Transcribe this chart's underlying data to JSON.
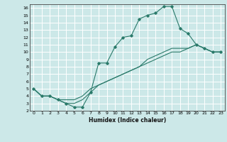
{
  "xlabel": "Humidex (Indice chaleur)",
  "bg_color": "#cce8e8",
  "grid_color": "#ffffff",
  "line_color": "#2a7a6a",
  "xlim": [
    -0.5,
    23.5
  ],
  "ylim": [
    2,
    16.5
  ],
  "xticks": [
    0,
    1,
    2,
    3,
    4,
    5,
    6,
    7,
    8,
    9,
    10,
    11,
    12,
    13,
    14,
    15,
    16,
    17,
    18,
    19,
    20,
    21,
    22,
    23
  ],
  "yticks": [
    2,
    3,
    4,
    5,
    6,
    7,
    8,
    9,
    10,
    11,
    12,
    13,
    14,
    15,
    16
  ],
  "line1_x": [
    0,
    1,
    2,
    3,
    4,
    5,
    6,
    7,
    8,
    9,
    10,
    11,
    12,
    13,
    14,
    15,
    16,
    17,
    18,
    19,
    20,
    21,
    22,
    23
  ],
  "line1_y": [
    5,
    4,
    4,
    3.5,
    3,
    2.5,
    2.5,
    4.5,
    8.5,
    8.5,
    10.7,
    12,
    12.2,
    14.5,
    15,
    15.3,
    16.2,
    16.2,
    13.2,
    12.5,
    11,
    10.5,
    10,
    10
  ],
  "line2_x": [
    0,
    1,
    2,
    3,
    4,
    5,
    6,
    7,
    8,
    9,
    10,
    11,
    12,
    13,
    14,
    15,
    16,
    17,
    18,
    19,
    20,
    21,
    22,
    23
  ],
  "line2_y": [
    5,
    4,
    4,
    3.5,
    3,
    3,
    3.5,
    4.5,
    5.5,
    6,
    6.5,
    7,
    7.5,
    8,
    8.5,
    9,
    9.5,
    10,
    10,
    10.5,
    11,
    10.5,
    10,
    10
  ],
  "line3_x": [
    0,
    1,
    2,
    3,
    4,
    5,
    6,
    7,
    8,
    9,
    10,
    11,
    12,
    13,
    14,
    15,
    16,
    17,
    18,
    19,
    20,
    21,
    22,
    23
  ],
  "line3_y": [
    5,
    4,
    4,
    3.5,
    3.5,
    3.5,
    4,
    5,
    5.5,
    6,
    6.5,
    7,
    7.5,
    8,
    9,
    9.5,
    10,
    10.5,
    10.5,
    10.5,
    11,
    10.5,
    10,
    10
  ]
}
